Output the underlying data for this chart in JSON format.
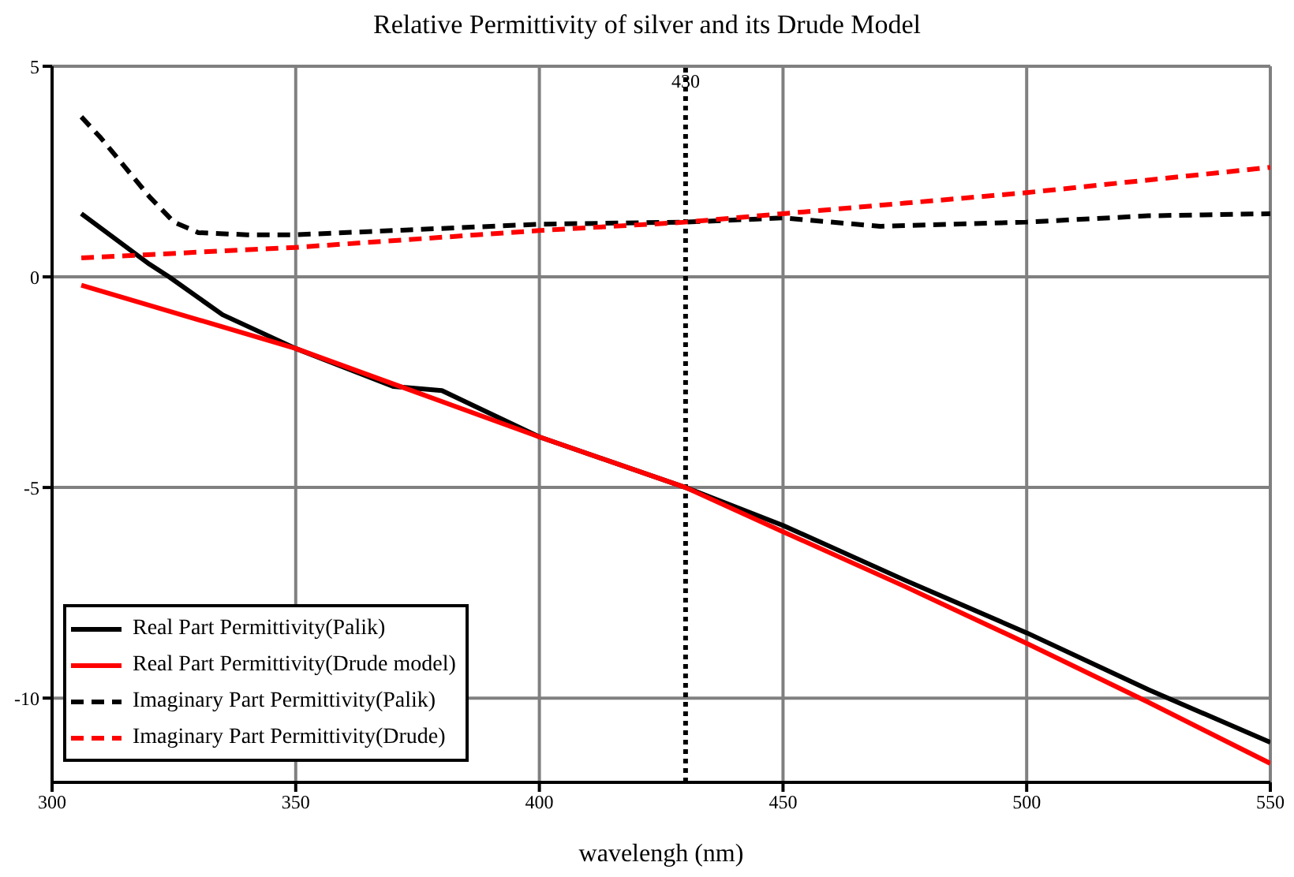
{
  "chart_data": {
    "type": "line",
    "title": "Relative Permittivity of silver and its Drude Model",
    "xlabel": "wavelengh (nm)",
    "xlim": [
      300,
      550
    ],
    "xticks": [
      300,
      350,
      400,
      450,
      500,
      550
    ],
    "ylim": [
      -12,
      5
    ],
    "yticks": [
      5,
      0,
      -5,
      -10
    ],
    "grid": true,
    "legend": "bottom left",
    "series": [
      {
        "name": "Real Part Permittivity(Palik)",
        "color": "#000000",
        "line_style": "solid",
        "x": [
          306,
          320,
          324,
          335,
          350,
          370,
          380,
          400,
          430,
          450,
          475,
          500,
          525,
          550
        ],
        "values": [
          1.5,
          0.3,
          0,
          -0.9,
          -1.7,
          -2.6,
          -2.7,
          -3.8,
          -5.0,
          -5.9,
          -7.2,
          -8.45,
          -9.8,
          -11.05
        ]
      },
      {
        "name": "Real Part Permittivity(Drude model)",
        "color": "#ff0000",
        "line_style": "solid",
        "x": [
          306,
          350,
          400,
          430,
          450,
          475,
          500,
          525,
          550
        ],
        "values": [
          -0.2,
          -1.7,
          -3.8,
          -5.0,
          -6.05,
          -7.35,
          -8.7,
          -10.1,
          -11.55
        ]
      },
      {
        "name": "Imaginary Part Permittivity(Palik)",
        "color": "#000000",
        "line_style": "dashed",
        "x": [
          306,
          310,
          315,
          320,
          325,
          330,
          340,
          350,
          400,
          430,
          450,
          470,
          500,
          525,
          550
        ],
        "values": [
          3.8,
          3.3,
          2.6,
          1.9,
          1.3,
          1.05,
          1.0,
          1.0,
          1.25,
          1.3,
          1.4,
          1.2,
          1.3,
          1.45,
          1.5
        ]
      },
      {
        "name": "Imaginary Part Permittivity(Drude)",
        "color": "#ff0000",
        "line_style": "dashed",
        "x": [
          306,
          350,
          400,
          430,
          450,
          475,
          500,
          525,
          550
        ],
        "values": [
          0.45,
          0.7,
          1.1,
          1.3,
          1.5,
          1.75,
          2.0,
          2.3,
          2.6
        ]
      }
    ],
    "ref_lines": [
      {
        "axis": "x",
        "value": 430,
        "label": "430",
        "color": "#000000",
        "line_style": "dotted"
      }
    ]
  }
}
